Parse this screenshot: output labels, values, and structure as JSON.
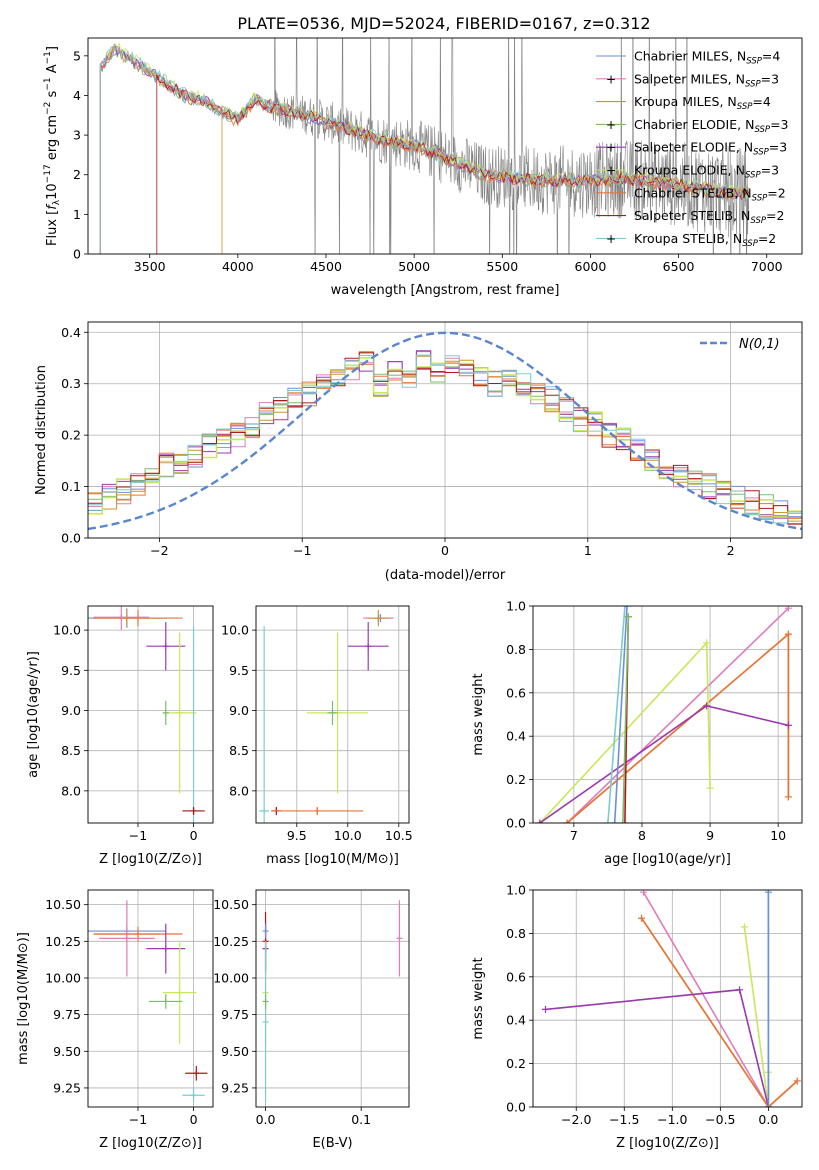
{
  "figure_title": "PLATE=0536, MJD=52024, FIBERID=0167, z=0.312",
  "legend_entries": [
    {
      "name": "Chabrier MILES, N",
      "nssp": "4",
      "color": "#6f8fd8",
      "marker": ""
    },
    {
      "name": "Salpeter MILES, N",
      "nssp": "3",
      "color": "#e07cba",
      "marker": "+"
    },
    {
      "name": "Kroupa MILES, N",
      "nssp": "4",
      "color": "#c8962a",
      "marker": ""
    },
    {
      "name": "Chabrier ELODIE, N",
      "nssp": "3",
      "color": "#7bbd6f",
      "marker": "+"
    },
    {
      "name": "Salpeter ELODIE, N",
      "nssp": "3",
      "color": "#9b38b0",
      "marker": "+"
    },
    {
      "name": "Kroupa ELODIE, N",
      "nssp": "3",
      "color": "#c8e85a",
      "marker": "+"
    },
    {
      "name": "Chabrier STELIB, N",
      "nssp": "2",
      "color": "#e8743b",
      "marker": ""
    },
    {
      "name": "Salpeter STELIB, N",
      "nssp": "2",
      "color": "#b01818",
      "marker": ""
    },
    {
      "name": "Kroupa STELIB, N",
      "nssp": "2",
      "color": "#7ccbd0",
      "marker": "+"
    }
  ],
  "legend_subscript": "SSP",
  "chart_data": [
    {
      "id": "spectrum",
      "type": "line",
      "xlabel": "wavelength [Angstrom, rest frame]",
      "ylabel": "Flux [f_λ 10^-17 erg cm^-2 s^-1 A^-1]",
      "xlim": [
        3150,
        7200
      ],
      "ylim": [
        0,
        5.45
      ],
      "xticks": [
        3500,
        4000,
        4500,
        5000,
        5500,
        6000,
        6500,
        7000
      ],
      "yticks": [
        0,
        1,
        2,
        3,
        4,
        5
      ],
      "grid": false,
      "legend": "top-right",
      "data_color": "#808080",
      "data_noise_start": 4200,
      "model_cutoffs": [
        3220,
        3220,
        3910,
        3220,
        3220,
        3220,
        3220,
        3540,
        3220
      ],
      "continuum": [
        [
          3220,
          4.7
        ],
        [
          3300,
          5.2
        ],
        [
          3500,
          4.6
        ],
        [
          3700,
          4.0
        ],
        [
          3800,
          3.9
        ],
        [
          3900,
          3.6
        ],
        [
          4000,
          3.4
        ],
        [
          4100,
          3.9
        ],
        [
          4200,
          3.7
        ],
        [
          4400,
          3.5
        ],
        [
          4600,
          3.2
        ],
        [
          4800,
          2.9
        ],
        [
          5000,
          2.75
        ],
        [
          5200,
          2.4
        ],
        [
          5400,
          2.0
        ],
        [
          5600,
          1.9
        ],
        [
          5800,
          1.85
        ],
        [
          6000,
          1.85
        ],
        [
          6200,
          1.9
        ],
        [
          6500,
          1.75
        ],
        [
          6700,
          1.6
        ],
        [
          6900,
          1.5
        ]
      ]
    },
    {
      "id": "residuals",
      "type": "histogram",
      "xlabel": "(data-model)/error",
      "ylabel": "Normed distribution",
      "xlim": [
        -2.5,
        2.5
      ],
      "ylim": [
        0,
        0.42
      ],
      "xticks": [
        -2,
        -1,
        0,
        1,
        2
      ],
      "yticks": [
        0.0,
        0.1,
        0.2,
        0.3,
        0.4
      ],
      "grid": true,
      "legend": "top-right",
      "bins": 50,
      "series_label": "N(0,1)",
      "series_color": "#5a86d0",
      "hist": [
        0.07,
        0.08,
        0.09,
        0.1,
        0.12,
        0.14,
        0.15,
        0.16,
        0.18,
        0.19,
        0.2,
        0.22,
        0.24,
        0.25,
        0.27,
        0.28,
        0.3,
        0.31,
        0.33,
        0.34,
        0.3,
        0.33,
        0.31,
        0.35,
        0.32,
        0.34,
        0.33,
        0.31,
        0.3,
        0.32,
        0.3,
        0.28,
        0.27,
        0.25,
        0.23,
        0.22,
        0.2,
        0.19,
        0.17,
        0.15,
        0.14,
        0.12,
        0.11,
        0.1,
        0.09,
        0.08,
        0.07,
        0.06,
        0.05,
        0.04
      ]
    },
    {
      "id": "age-vs-z",
      "type": "errorbar",
      "xlabel": "Z [log10(Z/Z⊙)]",
      "ylabel": "age [log10(age/yr)]",
      "xlim": [
        -1.9,
        0.35
      ],
      "ylim": [
        7.6,
        10.3
      ],
      "xticks": [
        -1,
        0
      ],
      "yticks": [
        8.0,
        8.5,
        9.0,
        9.5,
        10.0
      ],
      "grid": true,
      "points": [
        {
          "s": 0,
          "x": -1.2,
          "y": 10.15,
          "xerr": 0.7,
          "yerr": 0.12
        },
        {
          "s": 2,
          "x": -1.2,
          "y": 10.15,
          "xerr": 0.6,
          "yerr": 0.1
        },
        {
          "s": 6,
          "x": -1.0,
          "y": 10.15,
          "xerr": 0.8,
          "yerr": 0.1
        },
        {
          "s": 1,
          "x": -1.3,
          "y": 10.16,
          "xerr": 0.5,
          "yerr": 0.16
        },
        {
          "s": 4,
          "x": -0.5,
          "y": 9.8,
          "xerr": 0.35,
          "yerr": 0.3
        },
        {
          "s": 5,
          "x": -0.25,
          "y": 8.97,
          "xerr": 0.3,
          "yerr": 1.0
        },
        {
          "s": 3,
          "x": -0.5,
          "y": 8.97,
          "xerr": 0.05,
          "yerr": 0.15
        },
        {
          "s": 8,
          "x": 0.0,
          "y": 7.75,
          "xerr": 0.2,
          "yerr": 2.3
        },
        {
          "s": 7,
          "x": 0.0,
          "y": 7.75,
          "xerr": 0.2,
          "yerr": 0.05
        }
      ]
    },
    {
      "id": "age-vs-mass",
      "type": "errorbar",
      "xlabel": "mass [log10(M/M⊙)]",
      "ylabel": "",
      "xlim": [
        9.1,
        10.6
      ],
      "ylim": [
        7.6,
        10.3
      ],
      "xticks": [
        9.5,
        10.0,
        10.5
      ],
      "yticks": [
        8.0,
        8.5,
        9.0,
        9.5,
        10.0
      ],
      "grid": true,
      "points": [
        {
          "s": 0,
          "x": 10.32,
          "y": 10.15,
          "xerr": 0.12,
          "yerr": 0.05
        },
        {
          "s": 1,
          "x": 10.3,
          "y": 10.15,
          "xerr": 0.15,
          "yerr": 0.05
        },
        {
          "s": 2,
          "x": 10.3,
          "y": 10.15,
          "xerr": 0.1,
          "yerr": 0.1
        },
        {
          "s": 4,
          "x": 10.2,
          "y": 9.8,
          "xerr": 0.2,
          "yerr": 0.3
        },
        {
          "s": 5,
          "x": 9.9,
          "y": 8.97,
          "xerr": 0.3,
          "yerr": 1.0
        },
        {
          "s": 3,
          "x": 9.85,
          "y": 8.97,
          "xerr": 0.05,
          "yerr": 0.15
        },
        {
          "s": 8,
          "x": 9.18,
          "y": 7.75,
          "xerr": 0.05,
          "yerr": 2.3
        },
        {
          "s": 7,
          "x": 9.3,
          "y": 7.75,
          "xerr": 0.05,
          "yerr": 0.05
        },
        {
          "s": 6,
          "x": 9.7,
          "y": 7.75,
          "xerr": 0.45,
          "yerr": 0.05
        }
      ]
    },
    {
      "id": "weight-vs-age",
      "type": "line",
      "xlabel": "age [log10(age/yr)]",
      "ylabel": "mass weight",
      "xlim": [
        6.4,
        10.35
      ],
      "ylim": [
        0,
        1.0
      ],
      "xticks": [
        7,
        8,
        9,
        10
      ],
      "yticks": [
        0.0,
        0.2,
        0.4,
        0.6,
        0.8,
        1.0
      ],
      "grid": true,
      "series": [
        {
          "s": 1,
          "x": [
            6.9,
            10.15
          ],
          "y": [
            0.0,
            0.99
          ]
        },
        {
          "s": 2,
          "x": [
            6.9,
            10.15,
            10.15
          ],
          "y": [
            0.0,
            0.87,
            0.12
          ]
        },
        {
          "s": 6,
          "x": [
            6.9,
            10.15,
            10.15
          ],
          "y": [
            0.0,
            0.87,
            0.12
          ]
        },
        {
          "s": 5,
          "x": [
            6.5,
            8.95,
            9.0
          ],
          "y": [
            0.0,
            0.83,
            0.16
          ]
        },
        {
          "s": 4,
          "x": [
            6.5,
            8.95,
            10.15
          ],
          "y": [
            0.0,
            0.54,
            0.45
          ]
        },
        {
          "s": 8,
          "x": [
            7.5,
            7.75
          ],
          "y": [
            0.0,
            1.0
          ]
        },
        {
          "s": 0,
          "x": [
            7.6,
            7.78
          ],
          "y": [
            0.0,
            1.0
          ]
        },
        {
          "s": 7,
          "x": [
            7.75,
            7.8
          ],
          "y": [
            0.0,
            0.95
          ]
        },
        {
          "s": 3,
          "x": [
            7.72,
            7.8
          ],
          "y": [
            0.0,
            0.95
          ]
        }
      ]
    },
    {
      "id": "mass-vs-z",
      "type": "errorbar",
      "xlabel": "Z [log10(Z/Z⊙)]",
      "ylabel": "mass [log10(M/M⊙)]",
      "xlim": [
        -1.9,
        0.35
      ],
      "ylim": [
        9.12,
        10.6
      ],
      "xticks": [
        -1,
        0
      ],
      "yticks": [
        9.25,
        9.5,
        9.75,
        10.0,
        10.25,
        10.5
      ],
      "grid": true,
      "points": [
        {
          "s": 0,
          "x": -1.2,
          "y": 10.32,
          "xerr": 0.7,
          "yerr": 0.05
        },
        {
          "s": 2,
          "x": -1.2,
          "y": 10.3,
          "xerr": 0.6,
          "yerr": 0.05
        },
        {
          "s": 6,
          "x": -1.0,
          "y": 10.3,
          "xerr": 0.8,
          "yerr": 0.05
        },
        {
          "s": 1,
          "x": -1.2,
          "y": 10.27,
          "xerr": 0.5,
          "yerr": 0.26
        },
        {
          "s": 4,
          "x": -0.5,
          "y": 10.2,
          "xerr": 0.35,
          "yerr": 0.17
        },
        {
          "s": 5,
          "x": -0.25,
          "y": 9.9,
          "xerr": 0.3,
          "yerr": 0.35
        },
        {
          "s": 3,
          "x": -0.5,
          "y": 9.84,
          "xerr": 0.3,
          "yerr": 0.05
        },
        {
          "s": 8,
          "x": 0.0,
          "y": 9.2,
          "xerr": 0.2,
          "yerr": 0.05
        },
        {
          "s": 7,
          "x": 0.05,
          "y": 9.35,
          "xerr": 0.2,
          "yerr": 0.05
        }
      ]
    },
    {
      "id": "mass-vs-ebv",
      "type": "errorbar",
      "xlabel": "E(B-V)",
      "ylabel": "",
      "xlim": [
        -0.01,
        0.15
      ],
      "ylim": [
        9.12,
        10.6
      ],
      "xticks": [
        0.0,
        0.1
      ],
      "yticks": [
        9.25,
        9.5,
        9.75,
        10.0,
        10.25,
        10.5
      ],
      "grid": true,
      "points": [
        {
          "s": 1,
          "x": 0.14,
          "y": 10.27,
          "xerr": 0.0,
          "yerr": 0.26
        },
        {
          "s": 4,
          "x": 0.0,
          "y": 10.2,
          "xerr": 0.0,
          "yerr": 0.17
        },
        {
          "s": 7,
          "x": 0.0,
          "y": 10.25,
          "xerr": 0.0,
          "yerr": 0.2
        },
        {
          "s": 5,
          "x": 0.0,
          "y": 9.9,
          "xerr": 0.0,
          "yerr": 0.35
        },
        {
          "s": 8,
          "x": 0.0,
          "y": 9.7,
          "xerr": 0.0,
          "yerr": 0.55
        },
        {
          "s": 3,
          "x": 0.0,
          "y": 9.84,
          "xerr": 0.0,
          "yerr": 0.05
        },
        {
          "s": 0,
          "x": 0.0,
          "y": 10.32,
          "xerr": 0.0,
          "yerr": 0.05
        }
      ]
    },
    {
      "id": "weight-vs-z",
      "type": "line",
      "xlabel": "Z [log10(Z/Z⊙)]",
      "ylabel": "mass weight",
      "xlim": [
        -2.45,
        0.35
      ],
      "ylim": [
        0,
        1.0
      ],
      "xticks": [
        -2.0,
        -1.5,
        -1.0,
        -0.5,
        0.0
      ],
      "yticks": [
        0.0,
        0.2,
        0.4,
        0.6,
        0.8,
        1.0
      ],
      "grid": true,
      "series": [
        {
          "s": 1,
          "x": [
            -1.3,
            0.0
          ],
          "y": [
            0.99,
            0.0
          ]
        },
        {
          "s": 2,
          "x": [
            -1.32,
            0.0,
            0.3
          ],
          "y": [
            0.87,
            0.0,
            0.12
          ]
        },
        {
          "s": 6,
          "x": [
            -1.32,
            0.0,
            0.3
          ],
          "y": [
            0.87,
            0.0,
            0.12
          ]
        },
        {
          "s": 5,
          "x": [
            -0.25,
            0.0,
            0.0
          ],
          "y": [
            0.83,
            0.0,
            0.16
          ]
        },
        {
          "s": 4,
          "x": [
            -2.32,
            -0.3,
            0.0
          ],
          "y": [
            0.45,
            0.54,
            0.0
          ]
        },
        {
          "s": 8,
          "x": [
            0.0,
            0.0
          ],
          "y": [
            0.0,
            1.0
          ]
        },
        {
          "s": 0,
          "x": [
            0.0,
            0.0
          ],
          "y": [
            0.0,
            0.99
          ]
        }
      ]
    }
  ]
}
